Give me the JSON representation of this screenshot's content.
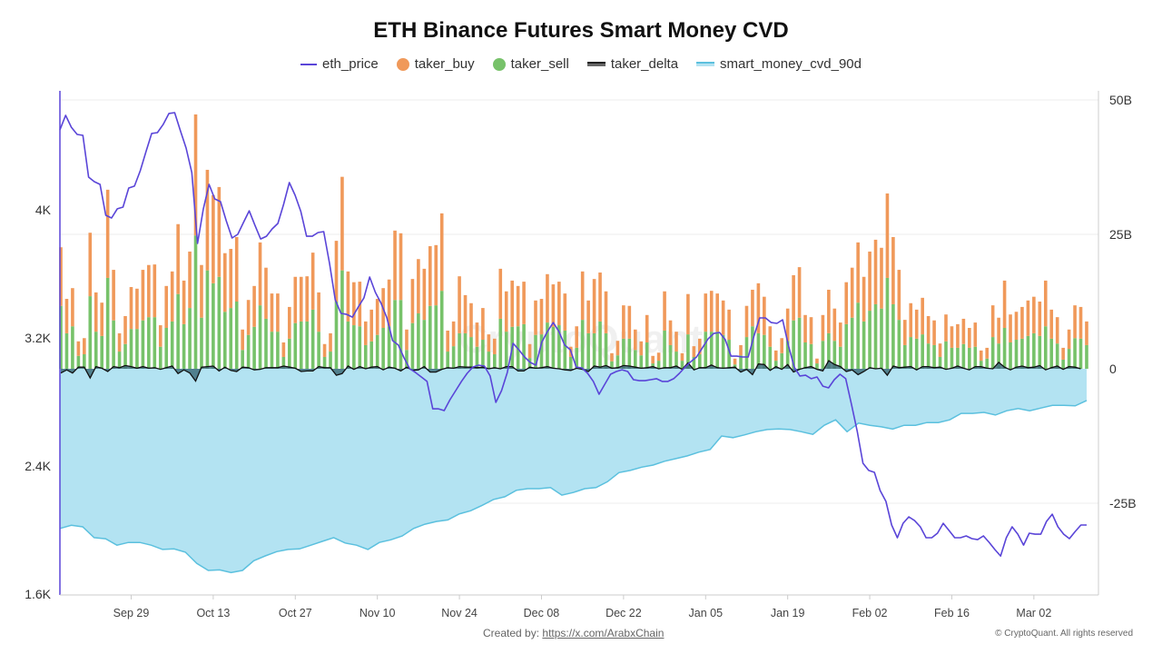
{
  "chart_data": {
    "type": "bar+line+area",
    "title": "ETH Binance Futures Smart Money CVD",
    "legend_position": "top",
    "legend": [
      {
        "name": "eth_price",
        "color": "#5a45d8",
        "kind": "line"
      },
      {
        "name": "taker_buy",
        "color": "#f0995a",
        "kind": "bar"
      },
      {
        "name": "taker_sell",
        "color": "#77c26a",
        "kind": "bar"
      },
      {
        "name": "taker_delta",
        "color": "#222222",
        "kind": "area"
      },
      {
        "name": "smart_money_cvd_90d",
        "color": "#b3e3f2",
        "kind": "area"
      }
    ],
    "xlim": [
      "Sep 17",
      "Mar 11"
    ],
    "x_ticks": [
      "Sep 29",
      "Oct 13",
      "Oct 27",
      "Nov 10",
      "Nov 24",
      "Dec 08",
      "Dec 22",
      "Jan 05",
      "Jan 19",
      "Feb 02",
      "Feb 16",
      "Mar 02"
    ],
    "y_left": {
      "ticks": [
        "1.6K",
        "2.4K",
        "3.2K",
        "4K"
      ],
      "tick_values": [
        1600,
        2400,
        3200,
        4000
      ],
      "ylim": [
        1600,
        4740
      ]
    },
    "y_right": {
      "ticks": [
        "-25B",
        "0",
        "25B",
        "50B"
      ],
      "tick_values": [
        -25,
        0,
        25,
        50
      ],
      "ylim": [
        -42,
        50
      ]
    },
    "grid": "horizontal",
    "series": {
      "eth_price": [
        4500,
        4590,
        4516,
        4471,
        4465,
        4204,
        4176,
        4159,
        3966,
        3949,
        4006,
        4017,
        4136,
        4148,
        4244,
        4363,
        4477,
        4482,
        4533,
        4602,
        4607,
        4494,
        4386,
        4233,
        3790,
        4006,
        4159,
        4068,
        4051,
        3932,
        3824,
        3847,
        3921,
        3994,
        3904,
        3818,
        3835,
        3881,
        3915,
        4034,
        4170,
        4091,
        3989,
        3835,
        3835,
        3858,
        3864,
        3665,
        3438,
        3353,
        3347,
        3330,
        3393,
        3450,
        3580,
        3484,
        3416,
        3325,
        3183,
        3155,
        3075,
        3007,
        2984,
        2956,
        2928,
        2757,
        2757,
        2746,
        2814,
        2871,
        2928,
        2979,
        3018,
        3030,
        3024,
        2962,
        2797,
        2871,
        2984,
        3166,
        3126,
        3081,
        3047,
        3030,
        3172,
        3240,
        3296,
        3240,
        3155,
        3126,
        3018,
        3013,
        2979,
        2928,
        2848,
        2911,
        2973,
        2990,
        3001,
        2990,
        2939,
        2933,
        2933,
        2939,
        2945,
        2928,
        2928,
        2945,
        2979,
        3018,
        3052,
        3081,
        3138,
        3194,
        3228,
        3234,
        3189,
        3086,
        3086,
        3081,
        3081,
        3211,
        3325,
        3325,
        3296,
        3291,
        3313,
        3155,
        3018,
        2962,
        2967,
        2945,
        2956,
        2899,
        2888,
        2939,
        2973,
        2945,
        2786,
        2616,
        2417,
        2372,
        2360,
        2247,
        2179,
        2031,
        1952,
        2042,
        2082,
        2059,
        2020,
        1952,
        1952,
        1980,
        2042,
        1997,
        1952,
        1952,
        1963,
        1946,
        1940,
        1963,
        1923,
        1878,
        1838,
        1952,
        2020,
        1974,
        1906,
        1980,
        1974,
        1974,
        2054,
        2099,
        2020,
        1974,
        1946,
        1991,
        2031,
        2031
      ],
      "taker_buy": [
        10.9,
        6.4,
        7.1,
        2.7,
        3.0,
        11.8,
        7.3,
        6.2,
        16.4,
        9.4,
        3.4,
        5.2,
        7.8,
        7.5,
        9.4,
        9.7,
        9.8,
        4.0,
        7.8,
        9.3,
        13.0,
        8.1,
        10.5,
        22.5,
        9.8,
        18.7,
        16.4,
        16.7,
        10.9,
        11.0,
        12.0,
        3.8,
        6.5,
        7.6,
        11.7,
        9.5,
        7.1,
        7.1,
        2.7,
        5.9,
        8.6,
        8.3,
        8.4,
        10.6,
        7.3,
        2.4,
        3.4,
        11.3,
        17.4,
        9.3,
        8.0,
        8.3,
        4.4,
        5.9,
        6.7,
        7.4,
        8.7,
        12.9,
        12.4,
        3.8,
        8.2,
        10.1,
        9.5,
        11.1,
        11.2,
        14.4,
        3.9,
        4.6,
        10.6,
        7.1,
        6.3,
        4.5,
        5.9,
        3.2,
        2.9,
        9.3,
        7.5,
        8.6,
        7.5,
        7.9,
        2.6,
        6.4,
        6.6,
        9.0,
        7.9,
        8.1,
        6.9,
        1.9,
        4.0,
        9.0,
        6.1,
        10.1,
        9.1,
        7.8,
        1.5,
        2.7,
        6.2,
        6.1,
        3.8,
        2.6,
        5.1,
        1.4,
        1.5,
        7.3,
        4.6,
        3.7,
        1.4,
        7.5,
        2.0,
        2.9,
        7.1,
        7.6,
        7.1,
        6.4,
        5.6,
        1.1,
        1.9,
        5.8,
        6.8,
        9.3,
        7.1,
        3.8,
        1.9,
        2.8,
        6.0,
        8.4,
        9.4,
        5.1,
        5.0,
        0.9,
        4.8,
        8.1,
        6.0,
        4.5,
        7.8,
        9.3,
        11.2,
        8.3,
        11.0,
        12.0,
        11.3,
        15.7,
        12.5,
        9.3,
        4.7,
        6.3,
        5.4,
        6.8,
        5.1,
        4.6,
        2.5,
        5.0,
        4.0,
        4.4,
        4.7,
        3.7,
        4.5,
        1.9,
        2.0,
        5.9,
        4.8,
        8.8,
        5.2,
        5.2,
        5.9,
        6.6,
        6.8,
        6.4,
        8.5,
        5.4,
        4.9,
        2.2,
        3.6,
        6.1,
        5.9,
        4.4
      ],
      "taker_sell": [
        11.7,
        6.6,
        7.9,
        2.4,
        2.7,
        13.5,
        6.9,
        6.1,
        16.9,
        9.0,
        3.2,
        4.6,
        7.4,
        7.4,
        9.0,
        9.6,
        9.6,
        4.1,
        7.6,
        8.8,
        13.9,
        8.3,
        11.3,
        24.8,
        9.5,
        18.3,
        15.9,
        17.1,
        10.6,
        11.3,
        12.5,
        3.5,
        6.3,
        7.8,
        11.8,
        9.3,
        6.9,
        6.9,
        2.2,
        5.6,
        8.5,
        8.8,
        8.8,
        11.0,
        6.9,
        2.2,
        3.2,
        12.5,
        18.3,
        8.8,
        8.1,
        7.9,
        4.4,
        5.1,
        6.3,
        7.6,
        7.9,
        12.8,
        12.8,
        3.5,
        8.5,
        10.3,
        9.1,
        11.7,
        11.8,
        14.5,
        3.2,
        4.2,
        6.6,
        6.6,
        5.9,
        4.1,
        5.4,
        3.2,
        2.7,
        9.3,
        6.9,
        7.8,
        7.9,
        8.3,
        2.0,
        6.3,
        6.4,
        8.6,
        7.8,
        8.1,
        7.1,
        2.2,
        3.9,
        9.1,
        6.6,
        6.6,
        8.8,
        6.6,
        1.4,
        2.5,
        5.6,
        5.6,
        3.5,
        2.5,
        4.9,
        1.0,
        1.5,
        7.1,
        4.4,
        3.2,
        1.5,
        6.4,
        2.2,
        2.7,
        6.9,
        6.9,
        6.9,
        6.3,
        5.4,
        0.8,
        2.5,
        5.9,
        7.9,
        6.6,
        6.3,
        4.1,
        1.5,
        2.9,
        5.2,
        9.0,
        9.5,
        4.9,
        4.6,
        1.0,
        5.2,
        6.6,
        5.2,
        4.1,
        8.3,
        9.5,
        12.3,
        8.8,
        10.8,
        12.0,
        11.2,
        16.9,
        12.0,
        9.1,
        4.4,
        5.9,
        5.6,
        6.4,
        4.7,
        4.4,
        2.2,
        5.1,
        3.9,
        3.9,
        4.6,
        3.9,
        4.1,
        1.5,
        1.9,
        5.9,
        4.7,
        7.6,
        4.9,
        5.4,
        5.6,
        6.1,
        6.6,
        6.1,
        7.9,
        5.6,
        4.7,
        1.7,
        3.7,
        5.7,
        5.6,
        4.4
      ],
      "taker_delta": [
        -0.8,
        -0.2,
        -0.8,
        0.3,
        0.3,
        -1.7,
        0.4,
        0.1,
        -0.5,
        0.4,
        0.2,
        0.6,
        0.4,
        0.1,
        0.4,
        0.1,
        0.2,
        -0.1,
        0.2,
        0.5,
        -0.9,
        -0.2,
        -0.8,
        -2.3,
        0.3,
        0.4,
        0.5,
        -0.4,
        0.3,
        -0.3,
        -0.5,
        0.3,
        0.2,
        -0.2,
        -0.1,
        0.2,
        0.2,
        0.2,
        0.5,
        0.3,
        0.1,
        -0.5,
        -0.4,
        -0.4,
        0.4,
        0.2,
        0.2,
        -1.2,
        -0.9,
        0.5,
        -0.1,
        0.4,
        0,
        0.3,
        0.4,
        -0.2,
        0.3,
        0.1,
        -0.4,
        0.3,
        -0.3,
        -0.2,
        0.4,
        -0.6,
        -0.6,
        -0.1,
        0.2,
        0.1,
        0.4,
        0.3,
        0.3,
        0.2,
        0.3,
        0,
        0.2,
        0,
        0.4,
        0.4,
        -0.4,
        -0.4,
        0.3,
        0.1,
        0.2,
        0.4,
        0.1,
        0,
        -0.2,
        -0.3,
        0.1,
        -0.1,
        -0.5,
        0.5,
        0.3,
        0.6,
        0.1,
        0.2,
        0.6,
        0.5,
        0.3,
        0.1,
        0.2,
        0.4,
        0,
        0.2,
        0.2,
        0.5,
        -0.1,
        1.1,
        -0.2,
        0.2,
        0.2,
        0.7,
        0.2,
        0.1,
        0.2,
        0.3,
        -0.6,
        -0.1,
        -1.1,
        0.9,
        0.8,
        -0.3,
        0.4,
        -0.1,
        0.8,
        -0.6,
        -0.1,
        0.2,
        0.4,
        -0.1,
        -0.4,
        1.5,
        0.8,
        0.4,
        -0.5,
        -0.2,
        -1.1,
        -0.5,
        0.2,
        0,
        0.1,
        -1.2,
        0.5,
        0.2,
        0.3,
        0.4,
        -0.2,
        0.4,
        0.4,
        0.2,
        0.3,
        -0.1,
        0.1,
        0.5,
        0.1,
        -0.2,
        0.4,
        0.4,
        0.1,
        0,
        1.2,
        0.3,
        -0.2,
        0.3,
        0.5,
        0.2,
        0.3,
        0.6,
        -0.2,
        0.2,
        0.5,
        -0.1,
        0.4,
        0.3,
        0
      ],
      "smart_money_cvd_90d": [
        -29.7,
        -29.1,
        -29.4,
        -31.4,
        -31.6,
        -32.8,
        -32.3,
        -32.3,
        -32.8,
        -33.6,
        -33.5,
        -34.1,
        -36.2,
        -37.5,
        -37.4,
        -37.9,
        -37.5,
        -35.7,
        -34.8,
        -34.0,
        -33.6,
        -33.5,
        -32.8,
        -32.1,
        -31.4,
        -32.4,
        -32.8,
        -33.6,
        -32.3,
        -31.8,
        -31.1,
        -29.7,
        -28.9,
        -28.4,
        -28.1,
        -27.0,
        -26.4,
        -25.4,
        -24.3,
        -23.8,
        -22.6,
        -22.3,
        -22.3,
        -22.1,
        -23.5,
        -23.0,
        -22.3,
        -22.1,
        -21.0,
        -19.3,
        -18.9,
        -18.3,
        -17.9,
        -17.2,
        -16.7,
        -16.2,
        -15.5,
        -15.0,
        -12.5,
        -12.8,
        -12.3,
        -11.7,
        -11.3,
        -11.2,
        -11.3,
        -11.7,
        -12.2,
        -10.5,
        -9.5,
        -11.7,
        -10.1,
        -10.5,
        -10.8,
        -11.2,
        -10.5,
        -10.5,
        -10.0,
        -10.0,
        -9.5,
        -8.3,
        -8.3,
        -8.1,
        -8.6,
        -7.8,
        -7.4,
        -7.8,
        -7.3,
        -6.8,
        -6.8,
        -6.9,
        -5.9
      ]
    }
  },
  "watermark": "CryptoQuant",
  "footer": {
    "created_by_label": "Created by:",
    "created_by_link": "https://x.com/ArabxChain",
    "copyright": "© CryptoQuant. All rights reserved"
  }
}
